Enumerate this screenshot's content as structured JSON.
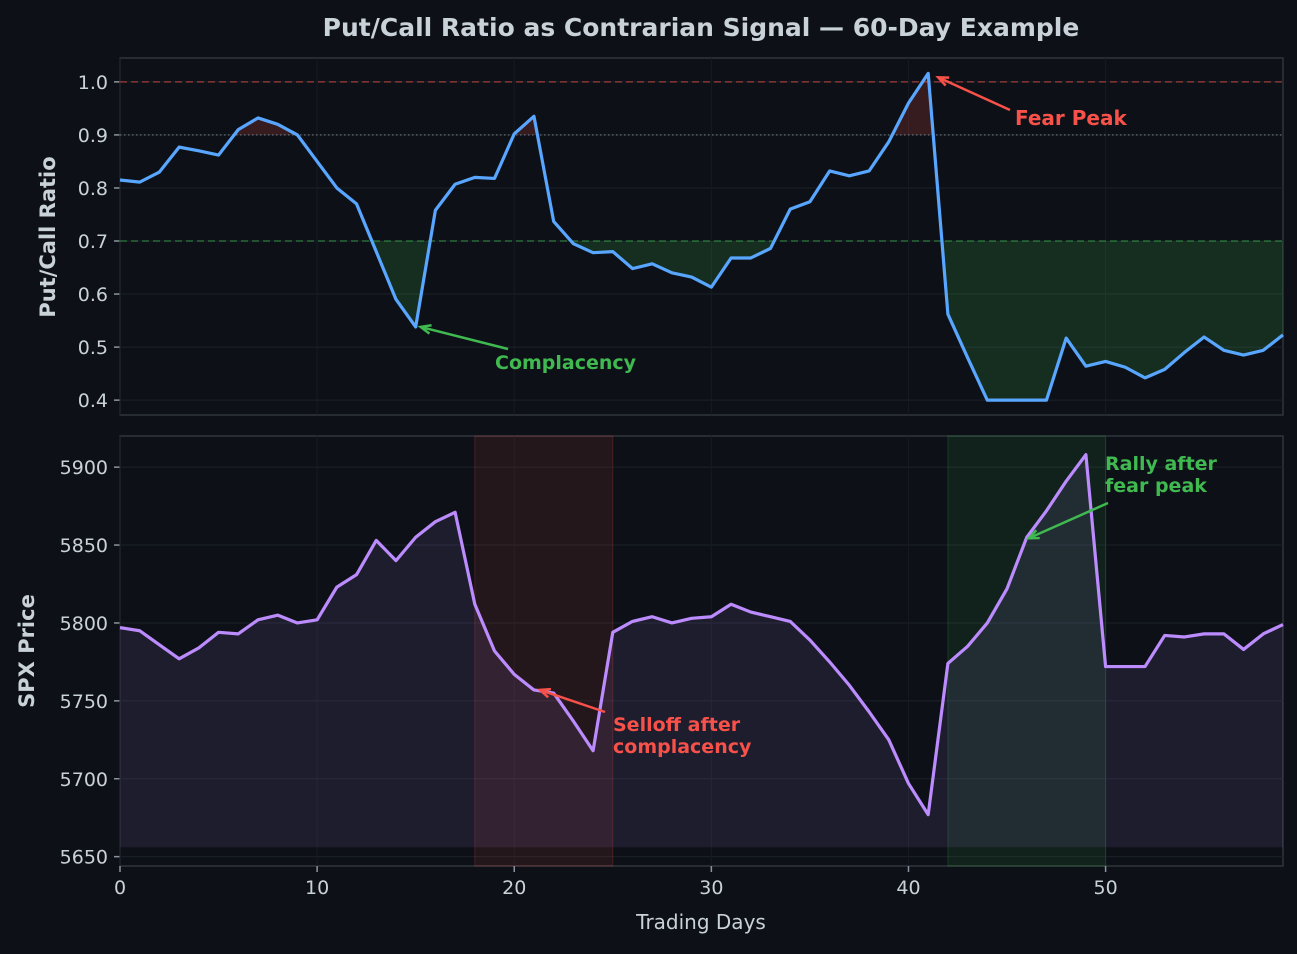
{
  "chart_data": [
    {
      "type": "line",
      "title": "Put/Call Ratio as Contrarian Signal — 60-Day Example",
      "ylabel": "Put/Call Ratio",
      "xlim": [
        0,
        59
      ],
      "ylim": [
        0.372,
        1.045
      ],
      "yticks": [
        "0.4",
        "0.5",
        "0.6",
        "0.7",
        "0.8",
        "0.9",
        "1.0"
      ],
      "grid": true,
      "reference_lines": [
        {
          "value": 1.0,
          "color": "#f85149",
          "style": "dashed"
        },
        {
          "value": 0.9,
          "color": "#8b949e",
          "style": "dotted"
        },
        {
          "value": 0.7,
          "color": "#3fb950",
          "style": "dashed"
        }
      ],
      "series": [
        {
          "name": "Put/Call Ratio",
          "color": "#58a6ff",
          "values": [
            0.815,
            0.811,
            0.83,
            0.877,
            0.87,
            0.862,
            0.91,
            0.932,
            0.92,
            0.9,
            0.85,
            0.8,
            0.77,
            0.68,
            0.59,
            0.538,
            0.758,
            0.807,
            0.82,
            0.818,
            0.902,
            0.935,
            0.737,
            0.695,
            0.678,
            0.68,
            0.648,
            0.657,
            0.64,
            0.632,
            0.613,
            0.668,
            0.668,
            0.686,
            0.76,
            0.774,
            0.832,
            0.823,
            0.832,
            0.887,
            0.96,
            1.016,
            0.562,
            0.48,
            0.4,
            0.4,
            0.4,
            0.4,
            0.517,
            0.464,
            0.473,
            0.462,
            0.442,
            0.458,
            0.49,
            0.519,
            0.494,
            0.485,
            0.494,
            0.523
          ]
        }
      ],
      "annotations": [
        {
          "text": "Fear Peak",
          "x": 41,
          "y": 1.016,
          "color": "#f85149"
        },
        {
          "text": "Complacency",
          "x": 15,
          "y": 0.538,
          "color": "#3fb950"
        }
      ]
    },
    {
      "type": "area",
      "xlabel": "Trading Days",
      "ylabel": "SPX Price",
      "xlim": [
        0,
        59
      ],
      "ylim": [
        5644,
        5920
      ],
      "xticks": [
        "0",
        "10",
        "20",
        "30",
        "40",
        "50"
      ],
      "yticks": [
        "5650",
        "5700",
        "5750",
        "5800",
        "5850",
        "5900"
      ],
      "grid": true,
      "shaded_regions": [
        {
          "from": 18,
          "to": 25,
          "color": "#f85149"
        },
        {
          "from": 42,
          "to": 50,
          "color": "#3fb950"
        }
      ],
      "series": [
        {
          "name": "SPX Price",
          "color": "#bc8cff",
          "values": [
            5797,
            5795,
            5786,
            5777,
            5784,
            5794,
            5793,
            5802,
            5805,
            5800,
            5802,
            5823,
            5831,
            5853,
            5840,
            5855,
            5865,
            5871,
            5812,
            5782,
            5767,
            5757,
            5755,
            5737,
            5718,
            5794,
            5801,
            5804,
            5800,
            5803,
            5804,
            5812,
            5807,
            5804,
            5801,
            5789,
            5775,
            5760,
            5743,
            5725,
            5697,
            5677,
            5774,
            5785,
            5800,
            5822,
            5855,
            5872,
            5891,
            5908,
            5772,
            5772,
            5772,
            5792,
            5791,
            5793,
            5793,
            5783,
            5793,
            5799
          ]
        }
      ],
      "annotations": [
        {
          "text": [
            "Selloff after",
            "complacency"
          ],
          "x": 21,
          "y": 5757,
          "color": "#f85149"
        },
        {
          "text": [
            "Rally after",
            "fear peak"
          ],
          "x": 46,
          "y": 5855,
          "color": "#3fb950"
        }
      ]
    }
  ]
}
